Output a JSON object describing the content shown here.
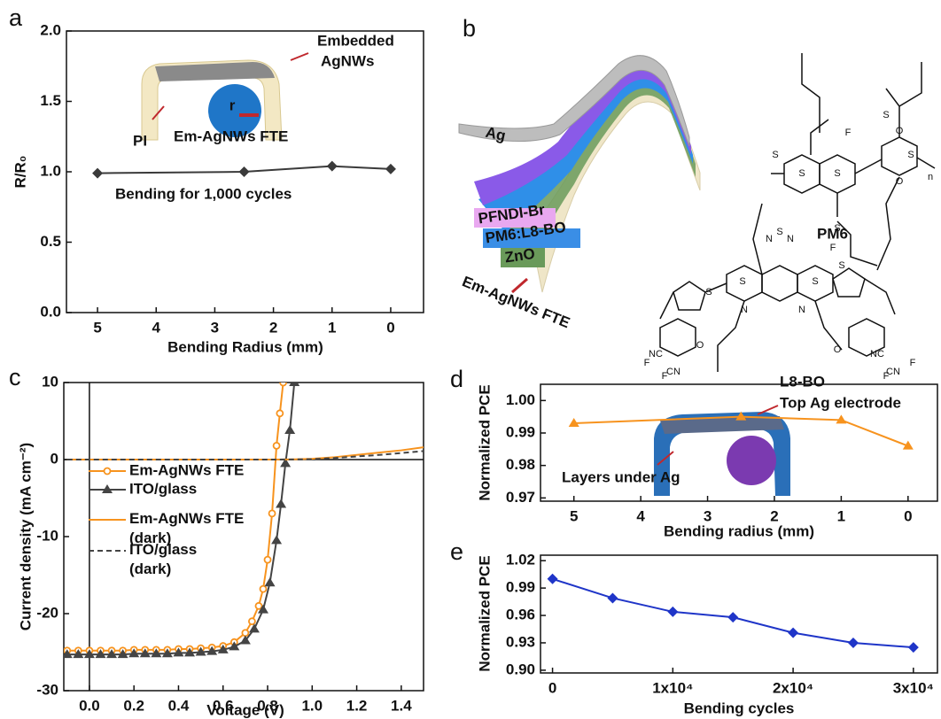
{
  "chart_data": [
    {
      "type": "line",
      "panel_label": "a",
      "xlabel": "Bending Radius (mm)",
      "ylabel": "R/R₀",
      "xlim": [
        5.53,
        -0.56
      ],
      "xticks": [
        5,
        4,
        3,
        2,
        1,
        0
      ],
      "ylim": [
        0,
        2
      ],
      "yticks": [
        {
          "value": 0,
          "label": "0.0"
        },
        0.5,
        {
          "value": 1,
          "label": "1.0"
        },
        1.5,
        {
          "value": 2,
          "label": "2.0"
        }
      ],
      "series": [
        {
          "name": null,
          "color": "#3a3a3a",
          "marker": "diamond",
          "x": [
            5,
            2.5,
            1,
            0
          ],
          "values": [
            0.99,
            1.0,
            1.04,
            1.02
          ]
        }
      ],
      "annotations": [
        "Embedded",
        "AgNWs",
        "PI",
        "Em-AgNWs FTE",
        "Bending for 1,000 cycles",
        "r"
      ]
    },
    {
      "type": "line",
      "panel_label": "c",
      "xlabel": "Voltage (V)",
      "ylabel": "Current density (mA cm⁻²)",
      "xlim": [
        -0.115,
        1.5
      ],
      "xticks": [
        {
          "value": 0,
          "label": "0.0"
        },
        0.2,
        0.4,
        0.6,
        0.8,
        {
          "value": 1,
          "label": "1.0"
        },
        1.2,
        1.4
      ],
      "ylim": [
        -30,
        10
      ],
      "yticks": [
        -30,
        -20,
        -10,
        0,
        10
      ],
      "zero_lines": true,
      "series": [
        {
          "name": "Em-AgNWs FTE",
          "color": "#f7931e",
          "marker": "circle",
          "x": [
            -0.1,
            -0.05,
            0,
            0.05,
            0.1,
            0.15,
            0.2,
            0.25,
            0.3,
            0.35,
            0.4,
            0.45,
            0.5,
            0.55,
            0.6,
            0.65,
            0.7,
            0.73,
            0.76,
            0.78,
            0.8,
            0.82,
            0.84,
            0.855,
            0.87
          ],
          "values": [
            -24.8,
            -24.8,
            -24.8,
            -24.8,
            -24.8,
            -24.8,
            -24.7,
            -24.7,
            -24.7,
            -24.7,
            -24.6,
            -24.6,
            -24.5,
            -24.4,
            -24.2,
            -23.7,
            -22.5,
            -21.0,
            -19.0,
            -16.8,
            -13.0,
            -7.0,
            1.8,
            6,
            10
          ]
        },
        {
          "name": "ITO/glass",
          "color": "#444444",
          "marker": "triangle",
          "x": [
            -0.1,
            -0.05,
            0,
            0.05,
            0.1,
            0.15,
            0.2,
            0.25,
            0.3,
            0.35,
            0.4,
            0.45,
            0.5,
            0.55,
            0.6,
            0.65,
            0.7,
            0.74,
            0.78,
            0.81,
            0.84,
            0.86,
            0.88,
            0.9,
            0.92
          ],
          "values": [
            -25.3,
            -25.3,
            -25.3,
            -25.3,
            -25.3,
            -25.3,
            -25.2,
            -25.2,
            -25.2,
            -25.2,
            -25.1,
            -25.1,
            -25.0,
            -24.9,
            -24.7,
            -24.3,
            -23.5,
            -22.0,
            -19.5,
            -16.0,
            -10.5,
            -5.8,
            -0.5,
            3.8,
            10
          ]
        },
        {
          "name": "Em-AgNWs FTE (dark)",
          "color": "#f7931e",
          "marker": null,
          "x": [
            -0.1,
            0,
            0.2,
            0.4,
            0.6,
            0.8,
            0.9,
            1.0,
            1.1,
            1.2,
            1.3,
            1.4,
            1.5
          ],
          "values": [
            0,
            0,
            0,
            0,
            0,
            0,
            0.02,
            0.1,
            0.3,
            0.6,
            0.9,
            1.2,
            1.6
          ]
        },
        {
          "name": "ITO/glass (dark)",
          "color": "#444444",
          "marker": null,
          "dash": true,
          "x": [
            -0.1,
            0,
            0.2,
            0.4,
            0.6,
            0.8,
            0.9,
            1.0,
            1.1,
            1.2,
            1.3,
            1.4,
            1.5
          ],
          "values": [
            0,
            0,
            0,
            0,
            0,
            0,
            0.01,
            0.05,
            0.2,
            0.4,
            0.6,
            0.85,
            1.1
          ]
        }
      ]
    },
    {
      "type": "line",
      "panel_label": "d",
      "xlabel": "Bending radius (mm)",
      "ylabel": "Normalized PCE",
      "xlim": [
        5.5,
        -0.44
      ],
      "xticks": [
        5,
        4,
        3,
        2,
        1,
        0
      ],
      "ylim": [
        0.969,
        1.005
      ],
      "yticks": [
        0.97,
        0.98,
        0.99,
        {
          "value": 1,
          "label": "1.00"
        }
      ],
      "series": [
        {
          "name": null,
          "color": "#f7931e",
          "marker": "triangle",
          "x": [
            5,
            2.5,
            1,
            0
          ],
          "values": [
            0.993,
            0.995,
            0.994,
            0.986
          ]
        }
      ],
      "annotations": [
        "Top Ag electrode",
        "Layers under Ag"
      ]
    },
    {
      "type": "line",
      "panel_label": "e",
      "xlabel": "Bending cycles",
      "ylabel": "Normalized PCE",
      "xlim": [
        -1000,
        32000
      ],
      "xticks": [
        0,
        {
          "value": 10000,
          "label": "1x10⁴"
        },
        {
          "value": 20000,
          "label": "2x10⁴"
        },
        {
          "value": 30000,
          "label": "3x10⁴"
        }
      ],
      "ylim": [
        0.897,
        1.026
      ],
      "yticks": [
        {
          "value": 0.9,
          "label": "0.90"
        },
        0.93,
        0.96,
        0.99,
        1.02
      ],
      "series": [
        {
          "name": null,
          "color": "#1f35c8",
          "marker": "diamond",
          "x": [
            0,
            5000,
            10000,
            15000,
            20000,
            25000,
            30000
          ],
          "values": [
            1.0,
            0.979,
            0.964,
            0.958,
            0.941,
            0.93,
            0.925
          ]
        }
      ]
    }
  ],
  "diagram": {
    "panel_label": "b",
    "layers": [
      "Ag",
      "PFNDI-Br",
      "PM6:L8-BO",
      "ZnO"
    ],
    "substrate": "Em-AgNWs FTE",
    "molecules": [
      {
        "name": "PM6",
        "atoms": [
          "F",
          "S",
          "S",
          "S",
          "O",
          "O",
          "S",
          "S",
          "S",
          "F",
          "n"
        ]
      },
      {
        "name": "L8-BO",
        "atoms": [
          "N",
          "S",
          "N",
          "S",
          "S",
          "N",
          "N",
          "S",
          "S",
          "CN",
          "NC",
          "NC",
          "CN",
          "O",
          "O",
          "F",
          "F",
          "F",
          "F"
        ]
      }
    ]
  }
}
